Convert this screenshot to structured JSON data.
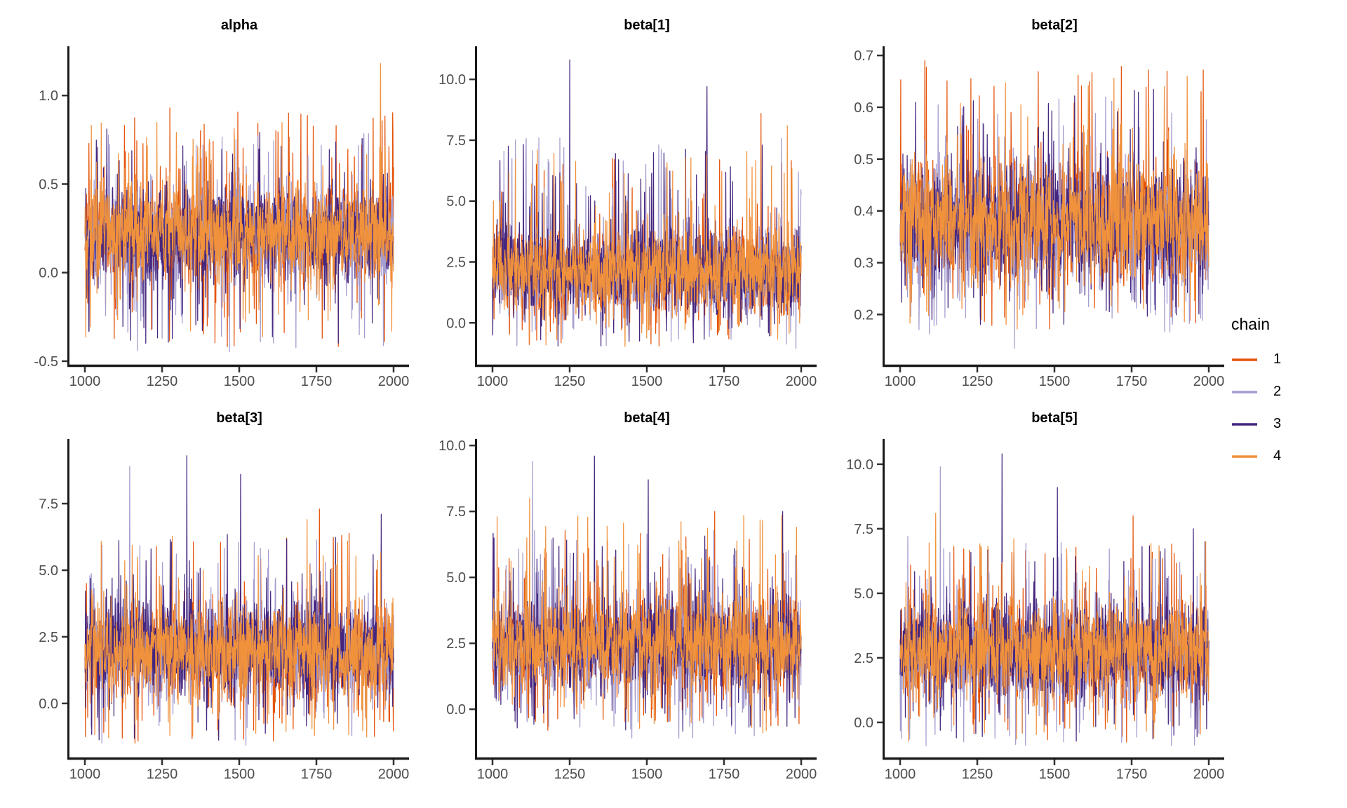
{
  "page": {
    "background": "#ffffff"
  },
  "legend": {
    "title": "chain",
    "items": [
      {
        "label": "1",
        "color": "#E4540A"
      },
      {
        "label": "2",
        "color": "#A49CCF"
      },
      {
        "label": "3",
        "color": "#45267E"
      },
      {
        "label": "4",
        "color": "#F0913C"
      }
    ]
  },
  "style": {
    "axis_line_color": "#1A1A1A",
    "tick_mark_color": "#333333",
    "tick_label_color": "#4D4D4D",
    "title_color": "#000000"
  },
  "chart_data": [
    {
      "type": "line",
      "title": "alpha",
      "x_range": [
        1000,
        2000
      ],
      "xticks": [
        1000,
        1250,
        1500,
        1750,
        2000
      ],
      "ylim": [
        -0.52,
        1.27
      ],
      "yticks": [
        {
          "v": -0.5,
          "label": "-0.5"
        },
        {
          "v": 0.0,
          "label": "0.0"
        },
        {
          "v": 0.5,
          "label": "0.5"
        },
        {
          "v": 1.0,
          "label": "1.0"
        }
      ],
      "n_iterations": 1000,
      "series": [
        {
          "name": "1",
          "seed": 101,
          "center": 0.21,
          "spread": 0.12,
          "hi": 0.92,
          "lo": -0.42,
          "p_hi": 0.045,
          "p_lo": 0.04
        },
        {
          "name": "2",
          "seed": 102,
          "center": 0.21,
          "spread": 0.12,
          "hi": 0.8,
          "lo": -0.45,
          "p_hi": 0.045,
          "p_lo": 0.04
        },
        {
          "name": "3",
          "seed": 103,
          "center": 0.22,
          "spread": 0.12,
          "hi": 0.85,
          "lo": -0.4,
          "p_hi": 0.045,
          "p_lo": 0.04
        },
        {
          "name": "4",
          "seed": 104,
          "center": 0.22,
          "spread": 0.12,
          "hi": 0.9,
          "lo": -0.38,
          "p_hi": 0.045,
          "p_lo": 0.04
        }
      ],
      "notable_spikes": [
        {
          "chain": "1",
          "iteration": 1275,
          "value": 0.93
        },
        {
          "chain": "1",
          "iteration": 1660,
          "value": 0.9
        },
        {
          "chain": "4",
          "iteration": 1958,
          "value": 1.18
        },
        {
          "chain": "2",
          "iteration": 1170,
          "value": -0.44
        }
      ]
    },
    {
      "type": "line",
      "title": "beta[1]",
      "x_range": [
        1000,
        2000
      ],
      "xticks": [
        1000,
        1250,
        1500,
        1750,
        2000
      ],
      "ylim": [
        -1.72,
        11.3
      ],
      "yticks": [
        {
          "v": 0.0,
          "label": "0.0"
        },
        {
          "v": 2.5,
          "label": "2.5"
        },
        {
          "v": 5.0,
          "label": "5.0"
        },
        {
          "v": 7.5,
          "label": "7.5"
        },
        {
          "v": 10.0,
          "label": "10.0"
        }
      ],
      "n_iterations": 1000,
      "series": [
        {
          "name": "1",
          "seed": 201,
          "center": 2.1,
          "spread": 0.8,
          "hi": 7.0,
          "lo": -1.0,
          "p_hi": 0.04,
          "p_lo": 0.04
        },
        {
          "name": "2",
          "seed": 202,
          "center": 2.1,
          "spread": 0.8,
          "hi": 7.6,
          "lo": -1.2,
          "p_hi": 0.04,
          "p_lo": 0.04
        },
        {
          "name": "3",
          "seed": 203,
          "center": 2.2,
          "spread": 0.85,
          "hi": 7.4,
          "lo": -1.3,
          "p_hi": 0.04,
          "p_lo": 0.04
        },
        {
          "name": "4",
          "seed": 204,
          "center": 2.2,
          "spread": 0.8,
          "hi": 7.2,
          "lo": -1.0,
          "p_hi": 0.04,
          "p_lo": 0.04
        }
      ],
      "notable_spikes": [
        {
          "chain": "3",
          "iteration": 1250,
          "value": 10.8
        },
        {
          "chain": "3",
          "iteration": 1695,
          "value": 9.7
        },
        {
          "chain": "4",
          "iteration": 1955,
          "value": 8.1
        },
        {
          "chain": "1",
          "iteration": 1870,
          "value": 8.6
        },
        {
          "chain": "2",
          "iteration": 1150,
          "value": 7.6
        }
      ]
    },
    {
      "type": "line",
      "title": "beta[2]",
      "x_range": [
        1000,
        2000
      ],
      "xticks": [
        1000,
        1250,
        1500,
        1750,
        2000
      ],
      "ylim": [
        0.103,
        0.715
      ],
      "yticks": [
        {
          "v": 0.2,
          "label": "0.2"
        },
        {
          "v": 0.3,
          "label": "0.3"
        },
        {
          "v": 0.4,
          "label": "0.4"
        },
        {
          "v": 0.5,
          "label": "0.5"
        },
        {
          "v": 0.6,
          "label": "0.6"
        },
        {
          "v": 0.7,
          "label": "0.7"
        }
      ],
      "n_iterations": 1000,
      "series": [
        {
          "name": "1",
          "seed": 301,
          "center": 0.375,
          "spread": 0.055,
          "hi": 0.68,
          "lo": 0.17,
          "p_hi": 0.04,
          "p_lo": 0.04
        },
        {
          "name": "2",
          "seed": 302,
          "center": 0.372,
          "spread": 0.055,
          "hi": 0.62,
          "lo": 0.16,
          "p_hi": 0.04,
          "p_lo": 0.04
        },
        {
          "name": "3",
          "seed": 303,
          "center": 0.378,
          "spread": 0.056,
          "hi": 0.64,
          "lo": 0.18,
          "p_hi": 0.04,
          "p_lo": 0.04
        },
        {
          "name": "4",
          "seed": 304,
          "center": 0.378,
          "spread": 0.055,
          "hi": 0.66,
          "lo": 0.18,
          "p_hi": 0.04,
          "p_lo": 0.04
        }
      ],
      "notable_spikes": [
        {
          "chain": "2",
          "iteration": 1370,
          "value": 0.135
        },
        {
          "chain": "1",
          "iteration": 1080,
          "value": 0.69
        },
        {
          "chain": "4",
          "iteration": 1930,
          "value": 0.66
        },
        {
          "chain": "1",
          "iteration": 1975,
          "value": 0.63
        }
      ]
    },
    {
      "type": "line",
      "title": "beta[3]",
      "x_range": [
        1000,
        2000
      ],
      "xticks": [
        1000,
        1250,
        1500,
        1750,
        2000
      ],
      "ylim": [
        -2.03,
        9.87
      ],
      "yticks": [
        {
          "v": 0.0,
          "label": "0.0"
        },
        {
          "v": 2.5,
          "label": "2.5"
        },
        {
          "v": 5.0,
          "label": "5.0"
        },
        {
          "v": 7.5,
          "label": "7.5"
        }
      ],
      "n_iterations": 1000,
      "series": [
        {
          "name": "1",
          "seed": 401,
          "center": 1.9,
          "spread": 0.8,
          "hi": 6.4,
          "lo": -1.5,
          "p_hi": 0.04,
          "p_lo": 0.04
        },
        {
          "name": "2",
          "seed": 402,
          "center": 1.9,
          "spread": 0.8,
          "hi": 6.2,
          "lo": -1.6,
          "p_hi": 0.04,
          "p_lo": 0.04
        },
        {
          "name": "3",
          "seed": 403,
          "center": 2.0,
          "spread": 0.85,
          "hi": 6.4,
          "lo": -1.4,
          "p_hi": 0.04,
          "p_lo": 0.04
        },
        {
          "name": "4",
          "seed": 404,
          "center": 2.0,
          "spread": 0.8,
          "hi": 6.3,
          "lo": -1.3,
          "p_hi": 0.04,
          "p_lo": 0.04
        }
      ],
      "notable_spikes": [
        {
          "chain": "2",
          "iteration": 1145,
          "value": 8.9
        },
        {
          "chain": "3",
          "iteration": 1330,
          "value": 9.3
        },
        {
          "chain": "3",
          "iteration": 1505,
          "value": 8.6
        },
        {
          "chain": "4",
          "iteration": 1720,
          "value": 6.9
        },
        {
          "chain": "1",
          "iteration": 1760,
          "value": 7.3
        },
        {
          "chain": "3",
          "iteration": 1960,
          "value": 7.1
        }
      ]
    },
    {
      "type": "line",
      "title": "beta[4]",
      "x_range": [
        1000,
        2000
      ],
      "xticks": [
        1000,
        1250,
        1500,
        1750,
        2000
      ],
      "ylim": [
        -1.83,
        10.19
      ],
      "yticks": [
        {
          "v": 0.0,
          "label": "0.0"
        },
        {
          "v": 2.5,
          "label": "2.5"
        },
        {
          "v": 5.0,
          "label": "5.0"
        },
        {
          "v": 7.5,
          "label": "7.5"
        },
        {
          "v": 10.0,
          "label": "10.0"
        }
      ],
      "n_iterations": 1000,
      "series": [
        {
          "name": "1",
          "seed": 501,
          "center": 2.4,
          "spread": 0.8,
          "hi": 6.8,
          "lo": -0.9,
          "p_hi": 0.04,
          "p_lo": 0.04
        },
        {
          "name": "2",
          "seed": 502,
          "center": 2.4,
          "spread": 0.8,
          "hi": 7.0,
          "lo": -1.1,
          "p_hi": 0.04,
          "p_lo": 0.04
        },
        {
          "name": "3",
          "seed": 503,
          "center": 2.5,
          "spread": 0.85,
          "hi": 6.9,
          "lo": -1.0,
          "p_hi": 0.04,
          "p_lo": 0.04
        },
        {
          "name": "4",
          "seed": 504,
          "center": 2.5,
          "spread": 0.8,
          "hi": 7.4,
          "lo": -0.9,
          "p_hi": 0.04,
          "p_lo": 0.04
        }
      ],
      "notable_spikes": [
        {
          "chain": "2",
          "iteration": 1130,
          "value": 9.4
        },
        {
          "chain": "4",
          "iteration": 1120,
          "value": 8.0
        },
        {
          "chain": "3",
          "iteration": 1330,
          "value": 9.6
        },
        {
          "chain": "3",
          "iteration": 1505,
          "value": 8.7
        },
        {
          "chain": "1",
          "iteration": 1720,
          "value": 7.5
        },
        {
          "chain": "3",
          "iteration": 1940,
          "value": 7.5
        }
      ]
    },
    {
      "type": "line",
      "title": "beta[5]",
      "x_range": [
        1000,
        2000
      ],
      "xticks": [
        1000,
        1250,
        1500,
        1750,
        2000
      ],
      "ylim": [
        -1.36,
        10.92
      ],
      "yticks": [
        {
          "v": 0.0,
          "label": "0.0"
        },
        {
          "v": 2.5,
          "label": "2.5"
        },
        {
          "v": 5.0,
          "label": "5.0"
        },
        {
          "v": 7.5,
          "label": "7.5"
        },
        {
          "v": 10.0,
          "label": "10.0"
        }
      ],
      "n_iterations": 1000,
      "series": [
        {
          "name": "1",
          "seed": 601,
          "center": 2.7,
          "spread": 0.85,
          "hi": 7.0,
          "lo": -0.8,
          "p_hi": 0.04,
          "p_lo": 0.04
        },
        {
          "name": "2",
          "seed": 602,
          "center": 2.7,
          "spread": 0.85,
          "hi": 7.4,
          "lo": -1.0,
          "p_hi": 0.04,
          "p_lo": 0.04
        },
        {
          "name": "3",
          "seed": 603,
          "center": 2.8,
          "spread": 0.9,
          "hi": 7.4,
          "lo": -0.9,
          "p_hi": 0.04,
          "p_lo": 0.04
        },
        {
          "name": "4",
          "seed": 604,
          "center": 2.8,
          "spread": 0.85,
          "hi": 7.2,
          "lo": -0.8,
          "p_hi": 0.04,
          "p_lo": 0.04
        }
      ],
      "notable_spikes": [
        {
          "chain": "2",
          "iteration": 1130,
          "value": 9.9
        },
        {
          "chain": "4",
          "iteration": 1115,
          "value": 8.1
        },
        {
          "chain": "3",
          "iteration": 1330,
          "value": 10.4
        },
        {
          "chain": "3",
          "iteration": 1510,
          "value": 9.1
        },
        {
          "chain": "1",
          "iteration": 1755,
          "value": 8.0
        },
        {
          "chain": "3",
          "iteration": 1950,
          "value": 7.5
        }
      ]
    }
  ]
}
